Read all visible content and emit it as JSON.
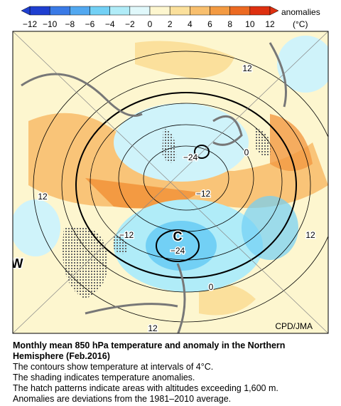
{
  "colorbar": {
    "labels": [
      "−12",
      "−10",
      "−8",
      "−6",
      "−4",
      "−2",
      "0",
      "2",
      "4",
      "6",
      "8",
      "10",
      "12"
    ],
    "colors": [
      "#1f3fd0",
      "#3a7ae6",
      "#52a8f0",
      "#72d0f5",
      "#b0ecf8",
      "#e0f8fb",
      "#fdf6cf",
      "#fbe09c",
      "#f8bf6e",
      "#f39a42",
      "#ec6a22",
      "#de3010"
    ],
    "title": "anomalies",
    "unit": "(°C)"
  },
  "map": {
    "labels": [
      "12",
      "−24",
      "−12",
      "12",
      "−12",
      "−24",
      "0",
      "12",
      "0",
      "12",
      "W",
      "C"
    ],
    "credit": "CPD/JMA"
  },
  "caption": {
    "title": "Monthly mean 850 hPa temperature and anomaly in the Northern Hemisphere (Feb.2016)",
    "lines": [
      "The contours show temperature at intervals of 4°C.",
      "The shading indicates temperature anomalies.",
      "The hatch patterns indicate areas with altitudes exceeding 1,600 m.",
      "Anomalies are deviations from the 1981–2010 average."
    ]
  }
}
